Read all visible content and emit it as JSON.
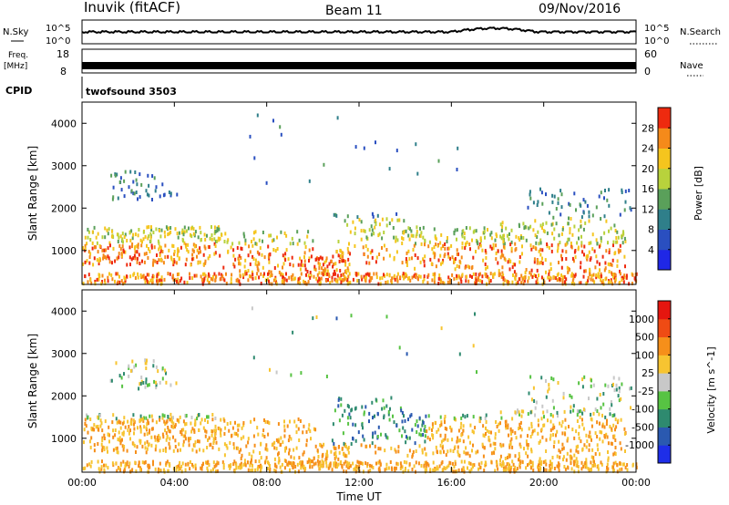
{
  "header": {
    "station": "Inuvik (fitACF)",
    "beam": "Beam 11",
    "date": "09/Nov/2016"
  },
  "nsky": {
    "label": "N.Sky",
    "tick_top": "10^5",
    "tick_bottom": "10^0"
  },
  "nsearch": {
    "label": "N.Search",
    "tick_top": "10^5",
    "tick_bottom": "10^0"
  },
  "freq": {
    "label_line1": "Freq.",
    "label_line2": "[MHz]",
    "tick_top": "18",
    "tick_bottom": "8"
  },
  "nave": {
    "label": "Nave",
    "tick_top": "60",
    "tick_bottom": "0"
  },
  "cpid": {
    "label": "CPID",
    "value": "twofsound 3503"
  },
  "chart_data": [
    {
      "type": "heatmap",
      "parameter": "power",
      "ylabel": "Slant Range [km]",
      "yticks": [
        "1000",
        "2000",
        "3000",
        "4000"
      ],
      "ylim": [
        200,
        4500
      ],
      "colorbar": {
        "label": "Power [dB]",
        "ticks": [
          "4",
          "8",
          "12",
          "16",
          "20",
          "24",
          "28"
        ],
        "colors": [
          "#1f27e6",
          "#2a4fc0",
          "#2f7f8a",
          "#5aa05a",
          "#b8d23c",
          "#f5c51e",
          "#f58a1a",
          "#ee2a0f"
        ]
      }
    },
    {
      "type": "heatmap",
      "parameter": "velocity",
      "xlabel": "Time UT",
      "ylabel": "Slant Range [km]",
      "xticks": [
        "00:00",
        "04:00",
        "08:00",
        "12:00",
        "16:00",
        "20:00",
        "00:00"
      ],
      "yticks": [
        "1000",
        "2000",
        "3000",
        "4000"
      ],
      "ylim": [
        200,
        4500
      ],
      "colorbar": {
        "label": "Velocity [m s^-1]",
        "ticks": [
          "1000",
          "500",
          "100",
          "25",
          "-25",
          "-100",
          "-500",
          "-1000"
        ],
        "colors": [
          "#1e2ee8",
          "#2a59b0",
          "#2e8a6f",
          "#57c343",
          "#c8c8c8",
          "#f7c431",
          "#f68f1a",
          "#ef4b14",
          "#e5160f"
        ]
      }
    }
  ]
}
